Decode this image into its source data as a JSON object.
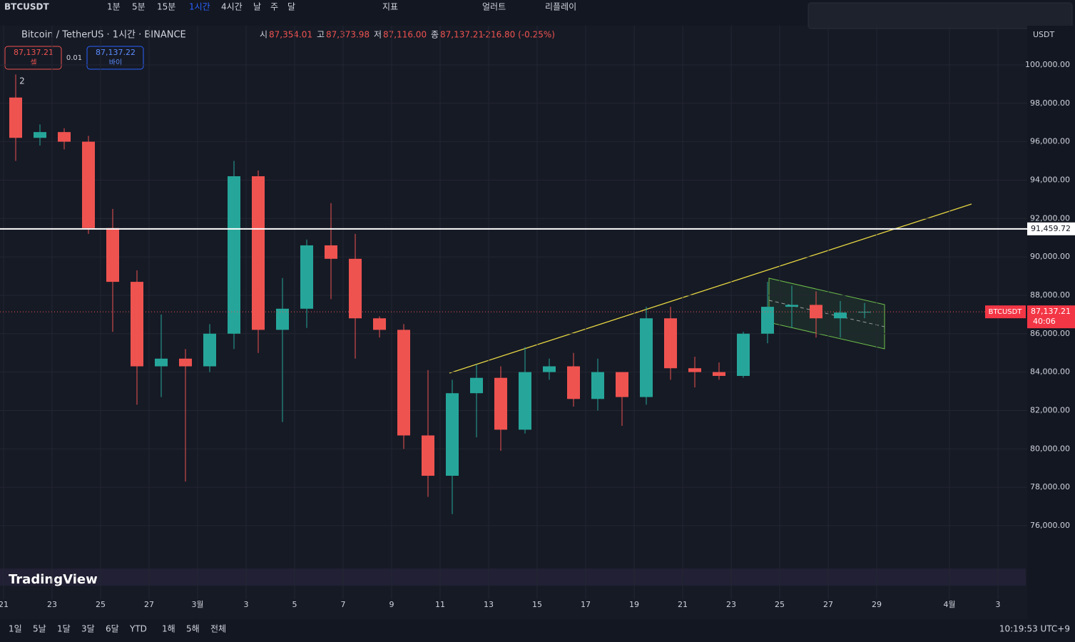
{
  "toolbar": {
    "symbol": "BTCUSDT",
    "intervals": [
      "1분",
      "5분",
      "15분",
      "1시간",
      "4시간",
      "날",
      "주",
      "달"
    ],
    "indicators": "지표",
    "alert": "얼러트",
    "replay": "리플레이"
  },
  "legend": {
    "title": "Bitcoin / TetherUS · 1시간 · BINANCE",
    "ohlc": [
      {
        "label": "시",
        "value": "87,354.01"
      },
      {
        "label": "고",
        "value": "87,373.98"
      },
      {
        "label": "저",
        "value": "87,116.00"
      },
      {
        "label": "종",
        "value": "87,137.21"
      }
    ],
    "change": "-216.80 (-0.25%)"
  },
  "trade": {
    "sell_price": "87,137.21",
    "sell": "셀",
    "spread": "0.01",
    "buy_price": "87,137.22",
    "buy": "바이"
  },
  "indicator_count": "2",
  "currency": "USDT",
  "brand": "TradingView",
  "chart_data": {
    "type": "candlestick",
    "categories": [
      "21",
      null,
      "23",
      null,
      "25",
      null,
      "27",
      null,
      "3월",
      null,
      "3",
      null,
      "5",
      null,
      "7",
      null,
      "9",
      null,
      "11",
      null,
      "13",
      null,
      "15",
      null,
      "17",
      null,
      "19",
      null,
      "21",
      null,
      "23",
      null,
      "25",
      null,
      "27",
      null,
      "29",
      null,
      null,
      "4월",
      null,
      "3"
    ],
    "open": [
      98300,
      96200,
      96500,
      96000,
      91500,
      88700,
      84300,
      84700,
      84300,
      86000,
      94200,
      86200,
      87300,
      90600,
      89900,
      86800,
      86200,
      80700,
      78600,
      82900,
      83700,
      81000,
      84000,
      84300,
      82600,
      84000,
      82700,
      86800,
      84200,
      84000,
      83800,
      86000,
      87400,
      87500,
      86800,
      87100,
      null,
      null,
      null,
      null,
      null,
      null
    ],
    "high": [
      99500,
      96900,
      96700,
      96300,
      92500,
      89300,
      87000,
      85200,
      86500,
      95000,
      94500,
      88900,
      90900,
      92800,
      91200,
      86900,
      86500,
      84100,
      83600,
      84400,
      84300,
      85300,
      84700,
      85000,
      84700,
      84000,
      87400,
      87400,
      84800,
      84500,
      86100,
      88700,
      88500,
      88200,
      87700,
      87600,
      null,
      null,
      null,
      null,
      null,
      null
    ],
    "low": [
      95000,
      95800,
      95600,
      91200,
      86100,
      82300,
      82700,
      78300,
      84000,
      85200,
      85000,
      81400,
      86300,
      87800,
      84700,
      85800,
      80000,
      77500,
      76600,
      80600,
      79900,
      80800,
      83600,
      82200,
      82000,
      81200,
      82300,
      83600,
      83200,
      83600,
      83700,
      85500,
      86300,
      85800,
      85800,
      86800,
      null,
      null,
      null,
      null,
      null,
      null
    ],
    "close": [
      96200,
      96500,
      96000,
      91500,
      88700,
      84300,
      84700,
      84300,
      86000,
      94200,
      86200,
      87300,
      90600,
      89900,
      86800,
      86200,
      80700,
      78600,
      82900,
      83700,
      81000,
      84000,
      84300,
      82600,
      84000,
      82700,
      86800,
      84200,
      84000,
      83800,
      86000,
      87400,
      87500,
      86800,
      87100,
      87137.21,
      null,
      null,
      null,
      null,
      null,
      null
    ],
    "up_color": "#26a69a",
    "down_color": "#ef5350",
    "ylim": [
      74400,
      101150
    ],
    "yticks": [
      {
        "value": 76000,
        "label": "76,000.00"
      },
      {
        "value": 78000,
        "label": "78,000.00"
      },
      {
        "value": 80000,
        "label": "80,000.00"
      },
      {
        "value": 82000,
        "label": "82,000.00"
      },
      {
        "value": 84000,
        "label": "84,000.00"
      },
      {
        "value": 86000,
        "label": "86,000.00"
      },
      {
        "value": 88000,
        "label": "88,000.00"
      },
      {
        "value": 90000,
        "label": "90,000.00"
      },
      {
        "value": 92000,
        "label": "92,000.00"
      },
      {
        "value": 94000,
        "label": "94,000.00"
      },
      {
        "value": 96000,
        "label": "96,000.00"
      },
      {
        "value": 98000,
        "label": "98,000.00"
      },
      {
        "value": 100000,
        "label": "100,000.00"
      }
    ],
    "hline": {
      "value": 91459.72,
      "label": "91,459.72"
    },
    "last_price": {
      "value": 87137.21,
      "label": "87,137.21"
    },
    "symbol_tag": "BTCUSDT",
    "countdown": "40:06",
    "grid": true
  },
  "ranges": [
    "1일",
    "5날",
    "1달",
    "3달",
    "6달",
    "YTD",
    "1해",
    "5해",
    "전체"
  ],
  "clock": "10:19:53 UTC+9"
}
